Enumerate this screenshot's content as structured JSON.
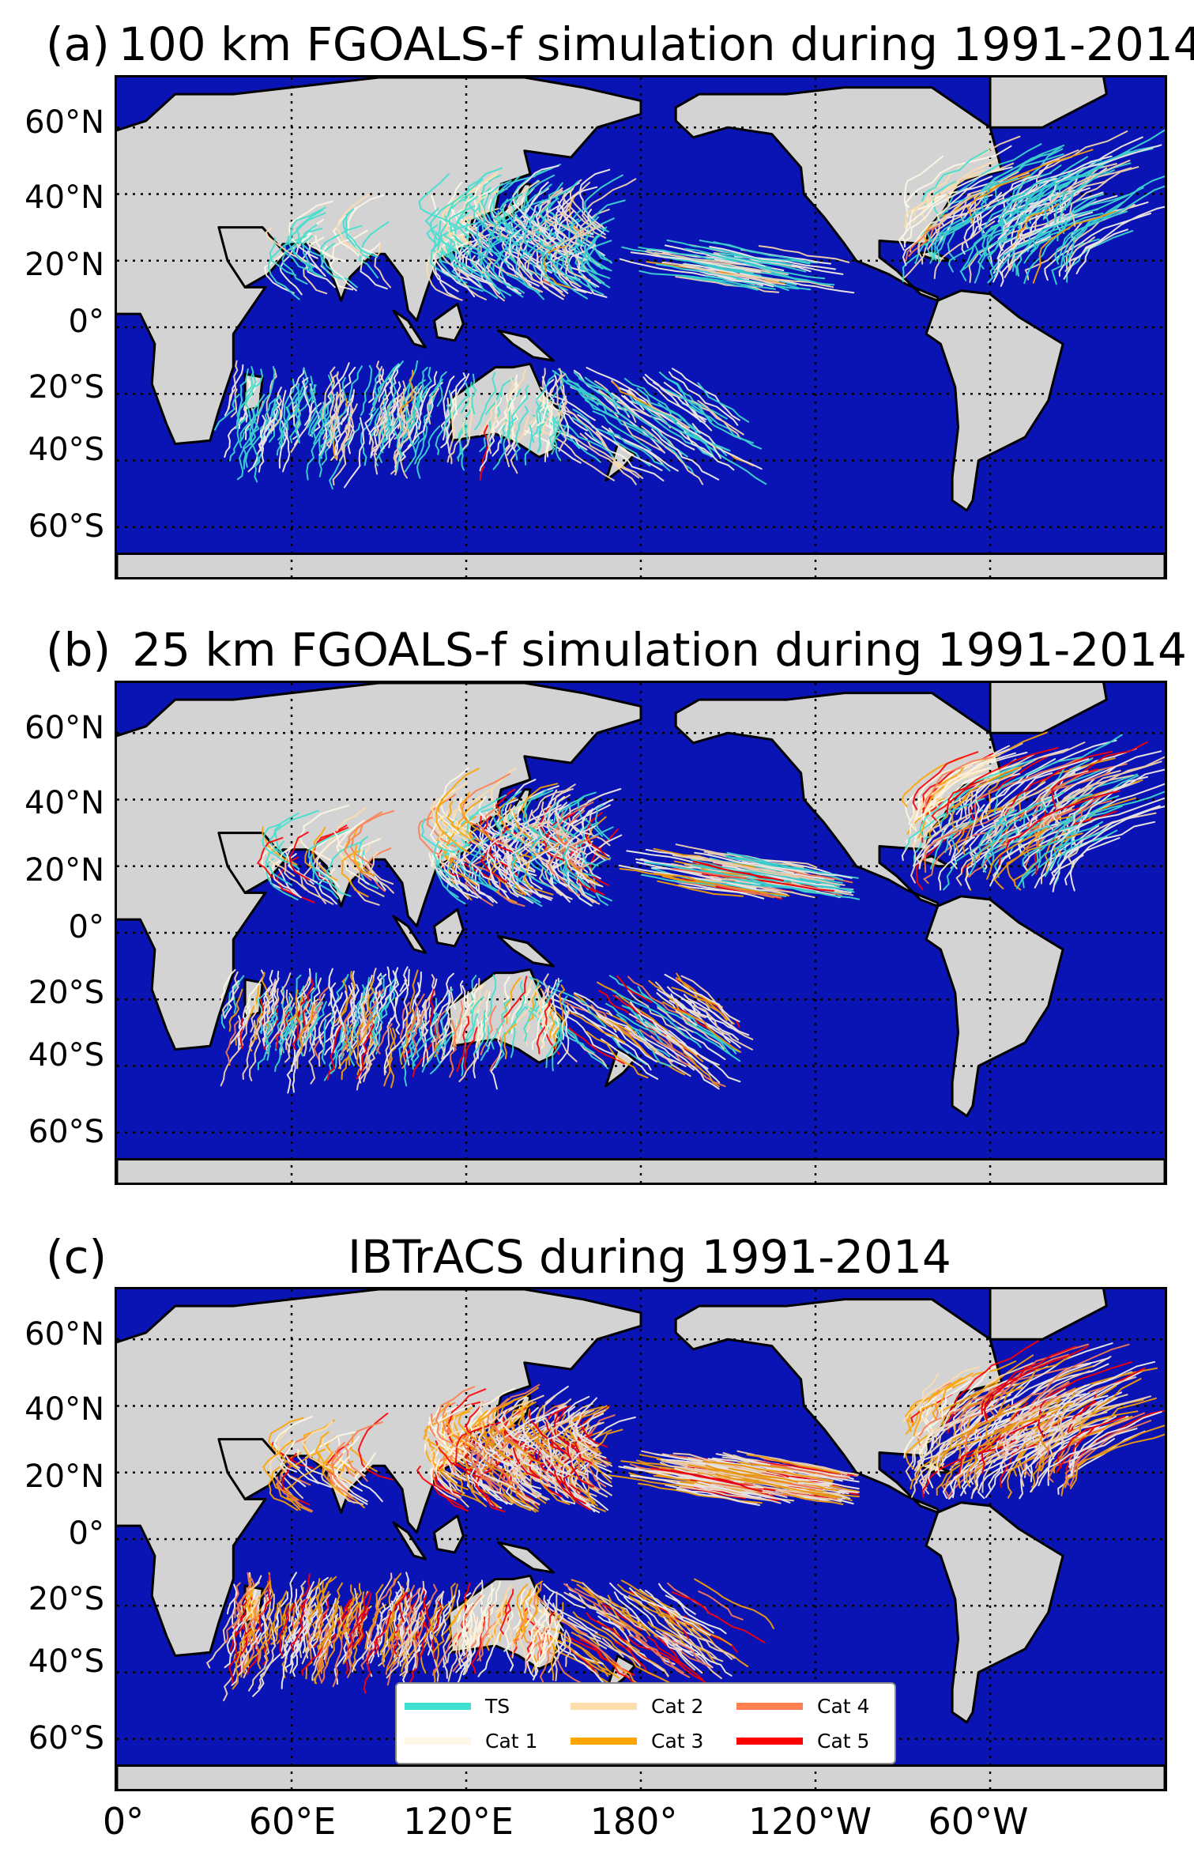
{
  "figure": {
    "panels": [
      {
        "letter": "(a)",
        "title": "100 km FGOALS-f simulation during 1991-2014"
      },
      {
        "letter": "(b)",
        "title": "25 km FGOALS-f simulation during 1991-2014"
      },
      {
        "letter": "(c)",
        "title": "IBTrACS during 1991-2014"
      }
    ],
    "lat_ticks": [
      "60°N",
      "40°N",
      "20°N",
      "0°",
      "20°S",
      "40°S",
      "60°S"
    ],
    "lon_ticks": [
      "0°",
      "60°E",
      "120°E",
      "180°",
      "120°W",
      "60°W"
    ],
    "colors": {
      "ocean": "#0a14b4",
      "land": "#d3d3d3",
      "coast": "#000000",
      "TS": "#40e0d0",
      "Cat 1": "#fff8e7",
      "Cat 2": "#ffdead",
      "Cat 3": "#ffa500",
      "Cat 4": "#ff7f50",
      "Cat 5": "#ff0000"
    },
    "legend": {
      "entries": [
        "TS",
        "Cat 1",
        "Cat 2",
        "Cat 3",
        "Cat 4",
        "Cat 5"
      ]
    }
  }
}
